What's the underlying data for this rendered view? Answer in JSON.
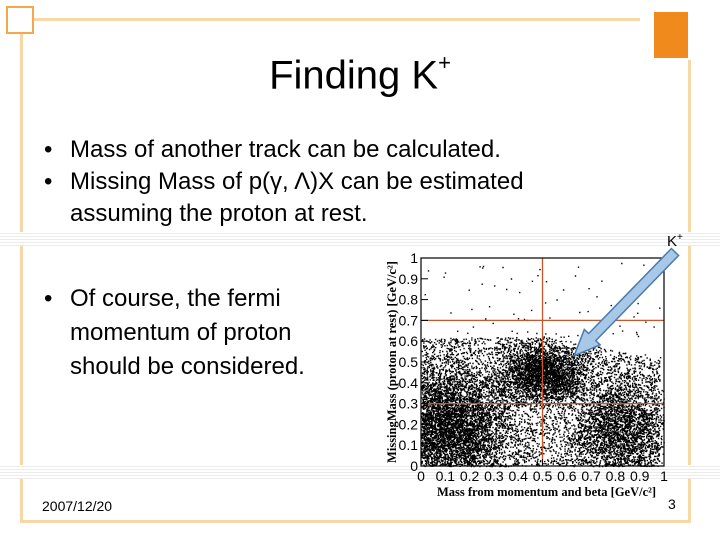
{
  "slide": {
    "title": "Finding K",
    "title_sup": "+",
    "bullets": [
      "Mass of another track can be calculated.",
      "Missing Mass of p(γ, Λ)X can be estimated",
      "assuming the proton at rest."
    ],
    "bullet_fermi": [
      "Of course, the fermi",
      "momentum of proton",
      "should be considered."
    ],
    "date": "2007/12/20",
    "page_number": "3",
    "annotation": {
      "text": "K",
      "sup": "+"
    }
  },
  "colors": {
    "frame": "#f6d7a6",
    "accent": "#f08a1c",
    "arrow_fill": "#a8c8e8",
    "arrow_stroke": "#4a7ab0",
    "guide_lines": "#c8562a"
  },
  "chart_data": {
    "type": "scatter",
    "xlabel": "Mass from momentum and beta [GeV/c²]",
    "ylabel": "MissingMass (proton at rest) [GeV/c²]",
    "xlim": [
      0,
      1
    ],
    "ylim": [
      0,
      1
    ],
    "x_ticks": [
      "0",
      "0.1",
      "0.2",
      "0.3",
      "0.4",
      "0.5",
      "0.6",
      "0.7",
      "0.8",
      "0.9",
      "1"
    ],
    "y_ticks": [
      "0",
      "0.1",
      "0.2",
      "0.3",
      "0.4",
      "0.5",
      "0.6",
      "0.7",
      "0.8",
      "0.9",
      "1"
    ],
    "guide_lines_x": [
      0.5
    ],
    "guide_lines_y": [
      0.3,
      0.7
    ],
    "clusters": [
      {
        "name": "",
        "x_center": 0.12,
        "y_center": 0.2,
        "x_spread": 0.12,
        "y_spread": 0.14
      },
      {
        "name": "",
        "x_center": 0.5,
        "y_center": 0.45,
        "x_spread": 0.09,
        "y_spread": 0.07
      },
      {
        "name": "",
        "x_center": 0.82,
        "y_center": 0.18,
        "x_spread": 0.1,
        "y_spread": 0.12
      }
    ],
    "arrow": {
      "label": "K+",
      "points_to": [
        0.63,
        0.53
      ]
    }
  }
}
